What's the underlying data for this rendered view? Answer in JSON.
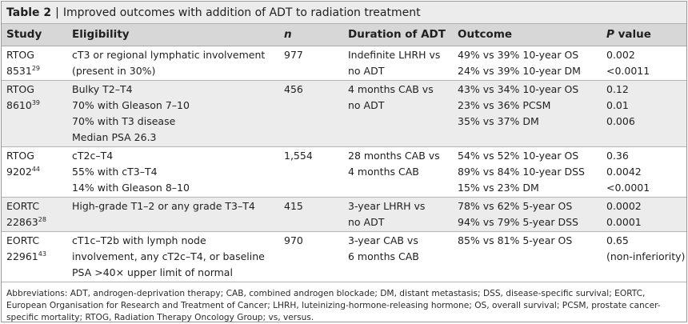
{
  "table": {
    "label": "Table 2",
    "separator": "|",
    "caption": "Improved outcomes with addition of ADT to radiation treatment"
  },
  "headers": {
    "study": "Study",
    "eligibility": "Eligibility",
    "n": "n",
    "duration": "Duration of ADT",
    "outcome": "Outcome",
    "p_italic": "P",
    "p_rest": " value"
  },
  "rows": [
    {
      "study_name": "RTOG",
      "study_id": "8531",
      "study_ref": "29",
      "eligibility": [
        "cT3 or regional lymphatic involvement",
        "(present in 30%)"
      ],
      "n": "977",
      "duration": [
        "Indefinite LHRH vs",
        "no ADT"
      ],
      "outcome": [
        "49% vs 39% 10-year OS",
        "24% vs 39% 10-year DM"
      ],
      "p": [
        "0.002",
        "<0.0011"
      ]
    },
    {
      "study_name": "RTOG",
      "study_id": "8610",
      "study_ref": "39",
      "eligibility": [
        "Bulky T2–T4",
        "70% with Gleason 7–10",
        "70% with T3 disease",
        "Median PSA 26.3"
      ],
      "n": "456",
      "duration": [
        "4 months CAB vs",
        "no ADT"
      ],
      "outcome": [
        "43% vs 34% 10-year OS",
        "23% vs 36% PCSM",
        "35% vs 37% DM"
      ],
      "p": [
        "0.12",
        "0.01",
        "0.006"
      ]
    },
    {
      "study_name": "RTOG",
      "study_id": "9202",
      "study_ref": "44",
      "eligibility": [
        "cT2c–T4",
        "55% with cT3–T4",
        "14% with Gleason 8–10"
      ],
      "n": "1,554",
      "duration": [
        "28 months CAB vs",
        "4 months CAB"
      ],
      "outcome": [
        "54% vs 52% 10-year OS",
        "89% vs 84% 10-year DSS",
        "15% vs 23% DM"
      ],
      "p": [
        "0.36",
        "0.0042",
        "<0.0001"
      ]
    },
    {
      "study_name": "EORTC",
      "study_id": "22863",
      "study_ref": "28",
      "eligibility": [
        "High-grade T1–2 or any grade T3–T4"
      ],
      "n": "415",
      "duration": [
        "3-year LHRH vs",
        "no ADT"
      ],
      "outcome": [
        "78% vs 62% 5-year OS",
        "94% vs 79% 5-year DSS"
      ],
      "p": [
        "0.0002",
        "0.0001"
      ]
    },
    {
      "study_name": "EORTC",
      "study_id": "22961",
      "study_ref": "43",
      "eligibility": [
        "cT1c–T2b with lymph node",
        "involvement, any cT2c–T4, or baseline",
        "PSA >40× upper limit of normal"
      ],
      "n": "970",
      "duration": [
        "3-year CAB vs",
        "6 months CAB"
      ],
      "outcome": [
        "85% vs 81% 5-year OS"
      ],
      "p": [
        "0.65",
        "(non-inferiority)"
      ]
    }
  ],
  "footnote": "Abbreviations: ADT, androgen-deprivation therapy; CAB, combined androgen blockade; DM, distant metastasis; DSS, disease-specific survival; EORTC, European Organisation for Research and Treatment of Cancer; LHRH, luteinizing-hormone-releasing hormone; OS, overall survival; PCSM, prostate cancer-specific mortality; RTOG, Radiation Therapy Oncology Group; vs, versus."
}
